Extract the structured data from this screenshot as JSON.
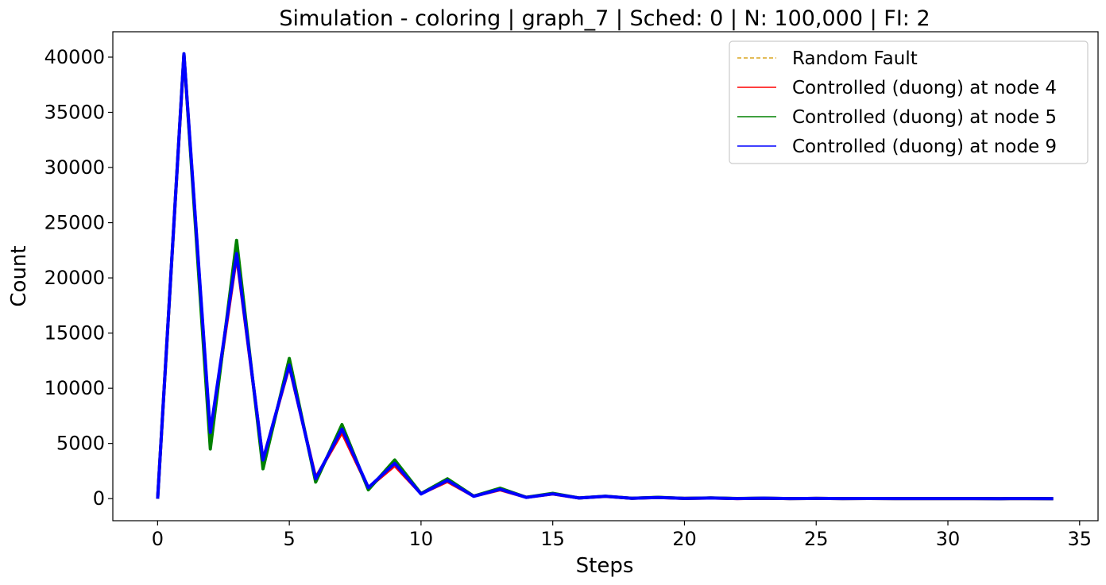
{
  "chart_data": {
    "type": "line",
    "title": "Simulation - coloring | graph_7 | Sched: 0 | N: 100,000 | FI: 2",
    "xlabel": "Steps",
    "ylabel": "Count",
    "xlim": [
      -1.7,
      35.7
    ],
    "ylim": [
      -2000,
      42300
    ],
    "xticks": [
      0,
      5,
      10,
      15,
      20,
      25,
      30,
      35
    ],
    "yticks": [
      0,
      5000,
      10000,
      15000,
      20000,
      25000,
      30000,
      35000,
      40000
    ],
    "grid": false,
    "legend_position": "top-right",
    "x": [
      0,
      1,
      2,
      3,
      4,
      5,
      6,
      7,
      8,
      9,
      10,
      11,
      12,
      13,
      14,
      15,
      16,
      17,
      18,
      19,
      20,
      21,
      22,
      23,
      24,
      25,
      26,
      27,
      28,
      29,
      30,
      31,
      32,
      33,
      34
    ],
    "series": [
      {
        "name": "Random Fault",
        "color": "#daa520",
        "style": "dashed",
        "values": [
          0,
          40300,
          5000,
          22500,
          3000,
          12300,
          1600,
          6300,
          850,
          3200,
          420,
          1650,
          210,
          850,
          110,
          430,
          60,
          210,
          30,
          110,
          20,
          60,
          10,
          40,
          8,
          20,
          5,
          15,
          5,
          10,
          3,
          6,
          2,
          4,
          2
        ]
      },
      {
        "name": "Controlled (duong) at node 4",
        "color": "#ff0000",
        "style": "solid",
        "values": [
          0,
          40200,
          5700,
          22000,
          3500,
          12000,
          1900,
          6000,
          1000,
          3000,
          450,
          1550,
          230,
          800,
          120,
          420,
          60,
          200,
          30,
          100,
          20,
          55,
          10,
          35,
          8,
          18,
          5,
          12,
          4,
          8,
          3,
          5,
          2,
          3,
          2
        ]
      },
      {
        "name": "Controlled (duong) at node 5",
        "color": "#008000",
        "style": "solid",
        "values": [
          0,
          40300,
          4500,
          23400,
          2700,
          12700,
          1500,
          6700,
          800,
          3500,
          450,
          1800,
          230,
          950,
          120,
          480,
          60,
          220,
          35,
          120,
          22,
          65,
          12,
          40,
          8,
          20,
          6,
          15,
          5,
          10,
          3,
          6,
          2,
          4,
          2
        ]
      },
      {
        "name": "Controlled (duong) at node 9",
        "color": "#0000ff",
        "style": "solid",
        "values": [
          0,
          40300,
          6000,
          22200,
          3500,
          12100,
          1800,
          6300,
          1000,
          3200,
          420,
          1650,
          210,
          850,
          110,
          430,
          60,
          210,
          30,
          110,
          20,
          60,
          10,
          40,
          8,
          20,
          5,
          15,
          5,
          10,
          3,
          6,
          2,
          4,
          2
        ]
      }
    ]
  }
}
